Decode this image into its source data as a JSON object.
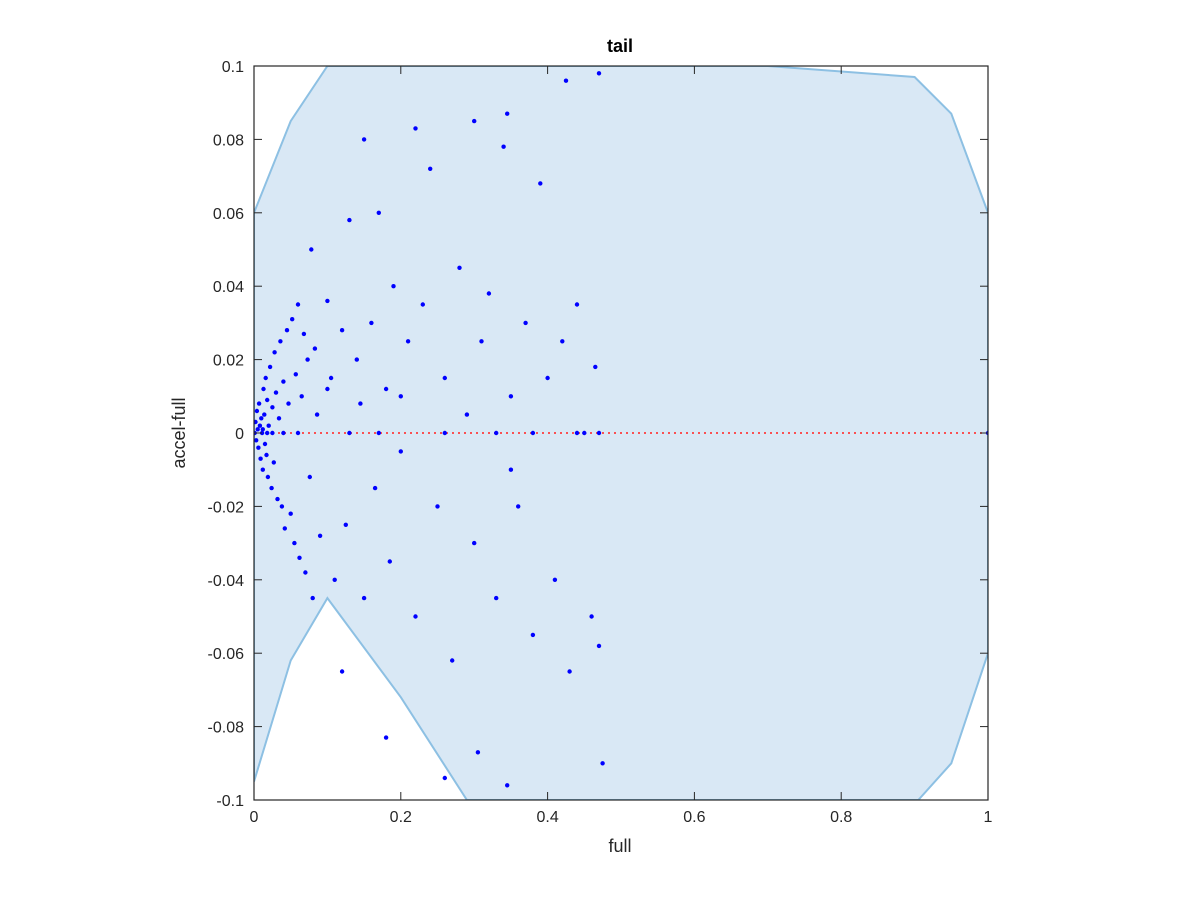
{
  "chart_data": {
    "type": "scatter",
    "title": "tail",
    "xlabel": "full",
    "ylabel": "accel-full",
    "xlim": [
      0,
      1
    ],
    "ylim": [
      -0.1,
      0.1
    ],
    "xticks": [
      0,
      0.2,
      0.4,
      0.6,
      0.8,
      1
    ],
    "xtick_labels": [
      "0",
      "0.2",
      "0.4",
      "0.6",
      "0.8",
      "1"
    ],
    "yticks": [
      -0.1,
      -0.08,
      -0.06,
      -0.04,
      -0.02,
      0,
      0.02,
      0.04,
      0.06,
      0.08,
      0.1
    ],
    "ytick_labels": [
      "-0.1",
      "-0.08",
      "-0.06",
      "-0.04",
      "-0.02",
      "0",
      "0.02",
      "0.04",
      "0.06",
      "0.08",
      "0.1"
    ],
    "grid": false,
    "colors": {
      "region_fill": "#d9e8f5",
      "region_edge": "#8dc0e3",
      "points": "#0000ff",
      "reference_line": "#ff3b3b",
      "axes": "#262626"
    },
    "reference_line": {
      "y": 0,
      "x_range": [
        0,
        1
      ],
      "style": "dotted"
    },
    "region_boundary": [
      [
        0,
        -0.095
      ],
      [
        0.05,
        -0.062
      ],
      [
        0.1,
        -0.045
      ],
      [
        0.2,
        -0.072
      ],
      [
        0.29,
        -0.1
      ],
      [
        0.905,
        -0.1
      ],
      [
        0.95,
        -0.09
      ],
      [
        1,
        -0.06
      ],
      [
        1,
        0.06
      ],
      [
        0.95,
        0.087
      ],
      [
        0.9,
        0.097
      ],
      [
        0.7,
        0.1
      ],
      [
        0.1,
        0.1
      ],
      [
        0.05,
        0.085
      ],
      [
        0,
        0.06
      ]
    ],
    "series": [
      {
        "values": [
          [
            0.001,
            0.0
          ],
          [
            0.002,
            0.003
          ],
          [
            0.003,
            -0.002
          ],
          [
            0.004,
            0.006
          ],
          [
            0.005,
            0.001
          ],
          [
            0.006,
            -0.004
          ],
          [
            0.007,
            0.008
          ],
          [
            0.008,
            0.002
          ],
          [
            0.009,
            -0.007
          ],
          [
            0.01,
            0.004
          ],
          [
            0.011,
            0.0
          ],
          [
            0.012,
            -0.01
          ],
          [
            0.013,
            0.012
          ],
          [
            0.014,
            0.005
          ],
          [
            0.015,
            -0.003
          ],
          [
            0.016,
            0.015
          ],
          [
            0.017,
            -0.006
          ],
          [
            0.018,
            0.009
          ],
          [
            0.019,
            -0.012
          ],
          [
            0.02,
            0.002
          ],
          [
            0.022,
            0.018
          ],
          [
            0.024,
            -0.015
          ],
          [
            0.025,
            0.007
          ],
          [
            0.027,
            -0.008
          ],
          [
            0.028,
            0.022
          ],
          [
            0.03,
            0.011
          ],
          [
            0.032,
            -0.018
          ],
          [
            0.034,
            0.004
          ],
          [
            0.036,
            0.025
          ],
          [
            0.038,
            -0.02
          ],
          [
            0.04,
            0.014
          ],
          [
            0.042,
            -0.026
          ],
          [
            0.045,
            0.028
          ],
          [
            0.047,
            0.008
          ],
          [
            0.05,
            -0.022
          ],
          [
            0.052,
            0.031
          ],
          [
            0.055,
            -0.03
          ],
          [
            0.057,
            0.016
          ],
          [
            0.06,
            0.035
          ],
          [
            0.062,
            -0.034
          ],
          [
            0.065,
            0.01
          ],
          [
            0.068,
            0.027
          ],
          [
            0.07,
            -0.038
          ],
          [
            0.073,
            0.02
          ],
          [
            0.076,
            -0.012
          ],
          [
            0.078,
            0.05
          ],
          [
            0.08,
            -0.045
          ],
          [
            0.083,
            0.023
          ],
          [
            0.086,
            0.005
          ],
          [
            0.09,
            -0.028
          ],
          [
            0.1,
            0.036
          ],
          [
            0.105,
            0.015
          ],
          [
            0.11,
            -0.04
          ],
          [
            0.12,
            0.028
          ],
          [
            0.125,
            -0.025
          ],
          [
            0.13,
            0.058
          ],
          [
            0.14,
            0.02
          ],
          [
            0.145,
            0.008
          ],
          [
            0.15,
            -0.045
          ],
          [
            0.16,
            0.03
          ],
          [
            0.165,
            -0.015
          ],
          [
            0.17,
            0.06
          ],
          [
            0.18,
            0.012
          ],
          [
            0.185,
            -0.035
          ],
          [
            0.19,
            0.04
          ],
          [
            0.2,
            -0.005
          ],
          [
            0.21,
            0.025
          ],
          [
            0.22,
            -0.05
          ],
          [
            0.23,
            0.035
          ],
          [
            0.24,
            0.072
          ],
          [
            0.25,
            -0.02
          ],
          [
            0.26,
            0.015
          ],
          [
            0.27,
            -0.062
          ],
          [
            0.28,
            0.045
          ],
          [
            0.29,
            0.005
          ],
          [
            0.3,
            -0.03
          ],
          [
            0.31,
            0.025
          ],
          [
            0.32,
            0.038
          ],
          [
            0.33,
            -0.045
          ],
          [
            0.34,
            0.078
          ],
          [
            0.35,
            0.01
          ],
          [
            0.36,
            -0.02
          ],
          [
            0.37,
            0.03
          ],
          [
            0.38,
            -0.055
          ],
          [
            0.39,
            0.068
          ],
          [
            0.4,
            0.015
          ],
          [
            0.41,
            -0.04
          ],
          [
            0.42,
            0.025
          ],
          [
            0.43,
            -0.065
          ],
          [
            0.44,
            0.035
          ],
          [
            0.45,
            0.0
          ],
          [
            0.46,
            -0.05
          ],
          [
            0.465,
            0.018
          ],
          [
            0.47,
            -0.058
          ],
          [
            0.47,
            0.098
          ],
          [
            0.012,
            0.001
          ],
          [
            0.018,
            0.0
          ],
          [
            0.025,
            0.0
          ],
          [
            0.04,
            0.0
          ],
          [
            0.06,
            0.0
          ],
          [
            0.13,
            0.0
          ],
          [
            0.17,
            0.0
          ],
          [
            0.26,
            0.0
          ],
          [
            0.33,
            0.0
          ],
          [
            0.38,
            0.0
          ],
          [
            0.44,
            0.0
          ],
          [
            0.47,
            0.0
          ],
          [
            0.1,
            0.012
          ],
          [
            0.2,
            0.01
          ],
          [
            0.35,
            -0.01
          ],
          [
            0.15,
            0.08
          ],
          [
            0.22,
            0.083
          ],
          [
            0.3,
            0.085
          ],
          [
            0.345,
            0.087
          ],
          [
            0.425,
            0.096
          ],
          [
            0.12,
            -0.065
          ],
          [
            0.18,
            -0.083
          ],
          [
            0.26,
            -0.094
          ],
          [
            0.305,
            -0.087
          ],
          [
            0.345,
            -0.096
          ],
          [
            0.475,
            -0.09
          ],
          [
            1.0,
            0.0
          ]
        ]
      }
    ]
  }
}
